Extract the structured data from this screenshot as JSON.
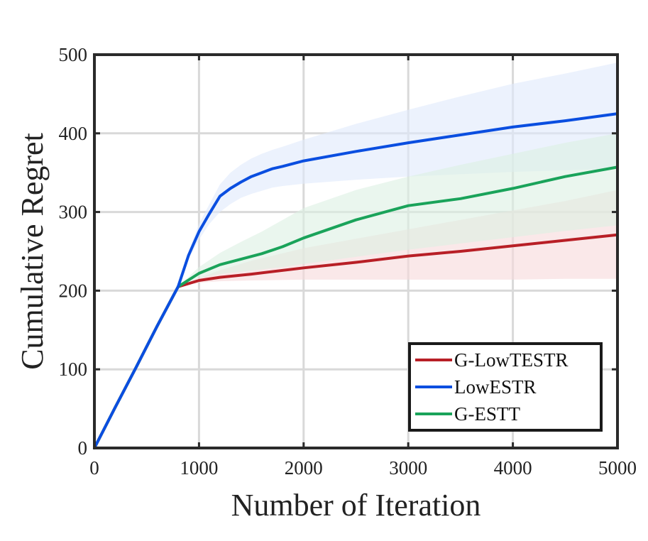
{
  "chart_data": {
    "type": "line",
    "title": "",
    "xlabel": "Number of Iteration",
    "ylabel": "Cumulative Regret",
    "xlim": [
      0,
      5000
    ],
    "ylim": [
      0,
      500
    ],
    "xticks": [
      0,
      1000,
      2000,
      3000,
      4000,
      5000
    ],
    "yticks": [
      0,
      100,
      200,
      300,
      400,
      500
    ],
    "xtick_labels": [
      "0",
      "1000",
      "2000",
      "3000",
      "4000",
      "5000"
    ],
    "ytick_labels": [
      "0",
      "100",
      "200",
      "300",
      "400",
      "500"
    ],
    "grid": true,
    "legend_position": "bottom-right",
    "series": [
      {
        "name": "G-LowTESTR",
        "color": "#b81f26",
        "band_color": "#f6d9da",
        "x": [
          0,
          200,
          400,
          600,
          800,
          1000,
          1200,
          1500,
          2000,
          2500,
          3000,
          3500,
          4000,
          4500,
          5000
        ],
        "values": [
          0,
          52,
          103,
          155,
          205,
          213,
          217,
          221,
          229,
          236,
          244,
          250,
          257,
          264,
          271
        ],
        "lower": [
          0,
          52,
          103,
          155,
          205,
          210,
          212,
          213,
          214,
          214,
          214,
          214,
          214,
          215,
          215
        ],
        "upper": [
          0,
          52,
          103,
          155,
          205,
          216,
          226,
          238,
          254,
          266,
          278,
          290,
          302,
          314,
          328
        ]
      },
      {
        "name": "LowESTR",
        "color": "#0a4ee0",
        "band_color": "#dfe9fb",
        "x": [
          0,
          200,
          400,
          600,
          800,
          900,
          1000,
          1100,
          1200,
          1300,
          1400,
          1500,
          1600,
          1700,
          1800,
          2000,
          2500,
          3000,
          3500,
          4000,
          4500,
          5000
        ],
        "values": [
          0,
          52,
          103,
          155,
          205,
          245,
          275,
          298,
          320,
          330,
          338,
          345,
          350,
          355,
          358,
          365,
          377,
          388,
          398,
          408,
          416,
          425
        ],
        "lower": [
          0,
          52,
          103,
          155,
          205,
          240,
          265,
          285,
          300,
          310,
          318,
          323,
          327,
          331,
          333,
          336,
          341,
          345,
          348,
          351,
          353,
          355
        ],
        "upper": [
          0,
          52,
          103,
          155,
          205,
          250,
          285,
          310,
          335,
          350,
          360,
          368,
          374,
          379,
          383,
          392,
          412,
          430,
          447,
          463,
          476,
          490
        ]
      },
      {
        "name": "G-ESTT",
        "color": "#1aa35a",
        "band_color": "#dcf0e3",
        "x": [
          0,
          200,
          400,
          600,
          800,
          1000,
          1200,
          1400,
          1600,
          1800,
          2000,
          2500,
          3000,
          3500,
          4000,
          4500,
          5000
        ],
        "values": [
          0,
          52,
          103,
          155,
          205,
          222,
          233,
          240,
          247,
          256,
          267,
          290,
          308,
          317,
          330,
          345,
          357
        ],
        "lower": [
          0,
          52,
          103,
          155,
          205,
          216,
          221,
          224,
          227,
          230,
          234,
          243,
          252,
          260,
          268,
          276,
          283
        ],
        "upper": [
          0,
          52,
          103,
          155,
          205,
          230,
          248,
          262,
          275,
          290,
          305,
          328,
          345,
          360,
          374,
          388,
          400
        ]
      }
    ]
  }
}
